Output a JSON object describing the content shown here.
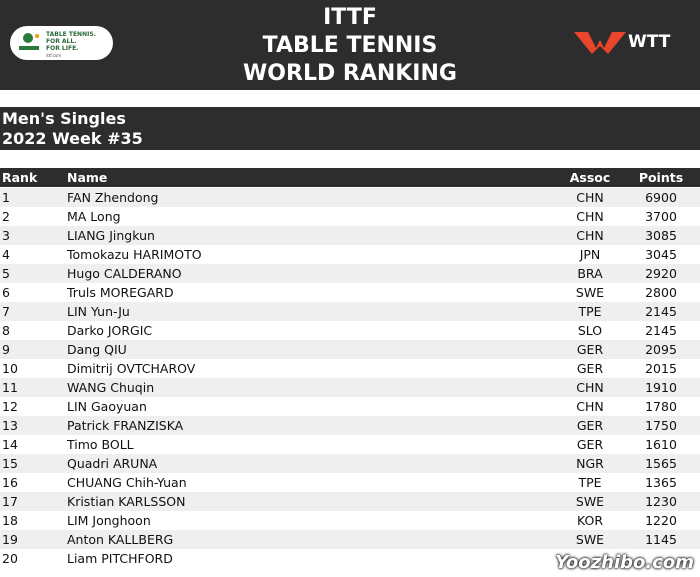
{
  "header": {
    "title_lines": [
      "ITTF",
      "TABLE TENNIS",
      "WORLD RANKING"
    ],
    "ittf_logo": [
      "TABLE TENNIS.",
      "FOR ALL.",
      "FOR LIFE.",
      "ittf.com"
    ],
    "wtt_logo": "WTT"
  },
  "subheader": {
    "event": "Men's Singles",
    "week": "2022 Week #35"
  },
  "table": {
    "columns": [
      "Rank",
      "Name",
      "Assoc",
      "Points"
    ],
    "rows": [
      [
        "1",
        "FAN Zhendong",
        "CHN",
        "6900"
      ],
      [
        "2",
        "MA Long",
        "CHN",
        "3700"
      ],
      [
        "3",
        "LIANG Jingkun",
        "CHN",
        "3085"
      ],
      [
        "4",
        "Tomokazu HARIMOTO",
        "JPN",
        "3045"
      ],
      [
        "5",
        "Hugo CALDERANO",
        "BRA",
        "2920"
      ],
      [
        "6",
        "Truls MOREGARD",
        "SWE",
        "2800"
      ],
      [
        "7",
        "LIN Yun-Ju",
        "TPE",
        "2145"
      ],
      [
        "8",
        "Darko JORGIC",
        "SLO",
        "2145"
      ],
      [
        "9",
        "Dang QIU",
        "GER",
        "2095"
      ],
      [
        "10",
        "Dimitrij OVTCHAROV",
        "GER",
        "2015"
      ],
      [
        "11",
        "WANG Chuqin",
        "CHN",
        "1910"
      ],
      [
        "12",
        "LIN Gaoyuan",
        "CHN",
        "1780"
      ],
      [
        "13",
        "Patrick FRANZISKA",
        "GER",
        "1750"
      ],
      [
        "14",
        "Timo BOLL",
        "GER",
        "1610"
      ],
      [
        "15",
        "Quadri ARUNA",
        "NGR",
        "1565"
      ],
      [
        "16",
        "CHUANG Chih-Yuan",
        "TPE",
        "1365"
      ],
      [
        "17",
        "Kristian KARLSSON",
        "SWE",
        "1230"
      ],
      [
        "18",
        "LIM Jonghoon",
        "KOR",
        "1220"
      ],
      [
        "19",
        "Anton KALLBERG",
        "SWE",
        "1145"
      ],
      [
        "20",
        "Liam PITCHFORD",
        "",
        ""
      ]
    ]
  },
  "watermark": "Yoozhibo.com"
}
